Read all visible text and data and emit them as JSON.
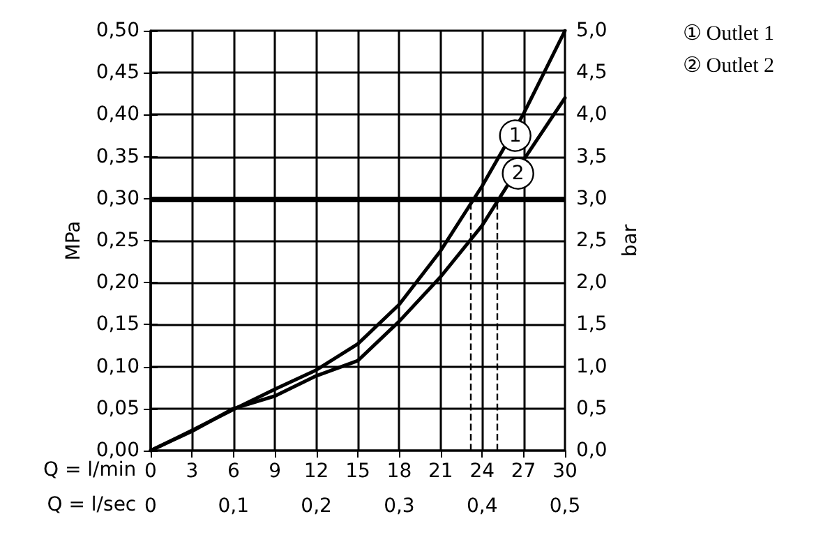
{
  "chart_data": {
    "type": "line",
    "xlabel": "Q = l/min",
    "x2label": "Q = l/sec",
    "ylabel": "MPa",
    "y2label": "bar",
    "x": [
      0,
      3,
      6,
      9,
      12,
      15,
      18,
      21,
      24,
      27,
      30
    ],
    "series": [
      {
        "name": "① Outlet 1",
        "color": "#000000",
        "values": [
          0,
          0.024,
          0.049,
          0.073,
          0.096,
          0.127,
          0.174,
          0.238,
          0.315,
          0.401,
          0.5
        ]
      },
      {
        "name": "② Outlet 2",
        "color": "#000000",
        "values": [
          0,
          0.023,
          0.05,
          0.065,
          0.089,
          0.107,
          0.154,
          0.207,
          0.268,
          0.346,
          0.42
        ]
      }
    ],
    "xlim": [
      0,
      30
    ],
    "xticks": [
      0,
      3,
      6,
      9,
      12,
      15,
      18,
      21,
      24,
      27,
      30
    ],
    "x2lim": [
      0,
      0.5
    ],
    "x2ticks": [
      0,
      {
        "value": 0.1,
        "label": "0,1"
      },
      {
        "value": 0.2,
        "label": "0,2"
      },
      {
        "value": 0.3,
        "label": "0,3"
      },
      {
        "value": 0.4,
        "label": "0,4"
      },
      {
        "value": 0.5,
        "label": "0,5"
      }
    ],
    "ylim": [
      0,
      0.5
    ],
    "yticks": [
      {
        "value": 0,
        "label": "0,00"
      },
      {
        "value": 0.05,
        "label": "0,05"
      },
      {
        "value": 0.1,
        "label": "0,10"
      },
      {
        "value": 0.15,
        "label": "0,15"
      },
      {
        "value": 0.2,
        "label": "0,20"
      },
      {
        "value": 0.25,
        "label": "0,25"
      },
      {
        "value": 0.3,
        "label": "0,30"
      },
      {
        "value": 0.35,
        "label": "0,35"
      },
      {
        "value": 0.4,
        "label": "0,40"
      },
      {
        "value": 0.45,
        "label": "0,45"
      },
      {
        "value": 0.5,
        "label": "0,50"
      }
    ],
    "y2lim": [
      0,
      5
    ],
    "y2ticks": [
      {
        "value": 0,
        "label": "0,0"
      },
      {
        "value": 0.5,
        "label": "0,5"
      },
      {
        "value": 1,
        "label": "1,0"
      },
      {
        "value": 1.5,
        "label": "1,5"
      },
      {
        "value": 2,
        "label": "2,0"
      },
      {
        "value": 2.5,
        "label": "2,5"
      },
      {
        "value": 3,
        "label": "3,0"
      },
      {
        "value": 3.5,
        "label": "3,5"
      },
      {
        "value": 4,
        "label": "4,0"
      },
      {
        "value": 4.5,
        "label": "4,5"
      },
      {
        "value": 5,
        "label": "5,0"
      }
    ],
    "ref_lines": [
      {
        "axis": "y",
        "value": 0.3,
        "color": "#000000",
        "line_style": "solid"
      },
      {
        "axis": "x",
        "value": 23.2,
        "color": "#000000",
        "line_style": "dashed"
      },
      {
        "axis": "x",
        "value": 25.1,
        "color": "#000000",
        "line_style": "dashed"
      }
    ],
    "annotations": [
      {
        "text": "1",
        "x": 26.4,
        "y": 0.375
      },
      {
        "text": "2",
        "x": 26.6,
        "y": 0.33
      }
    ],
    "grid": true,
    "legend": "top right",
    "marker": "none",
    "line_style": "solid"
  }
}
